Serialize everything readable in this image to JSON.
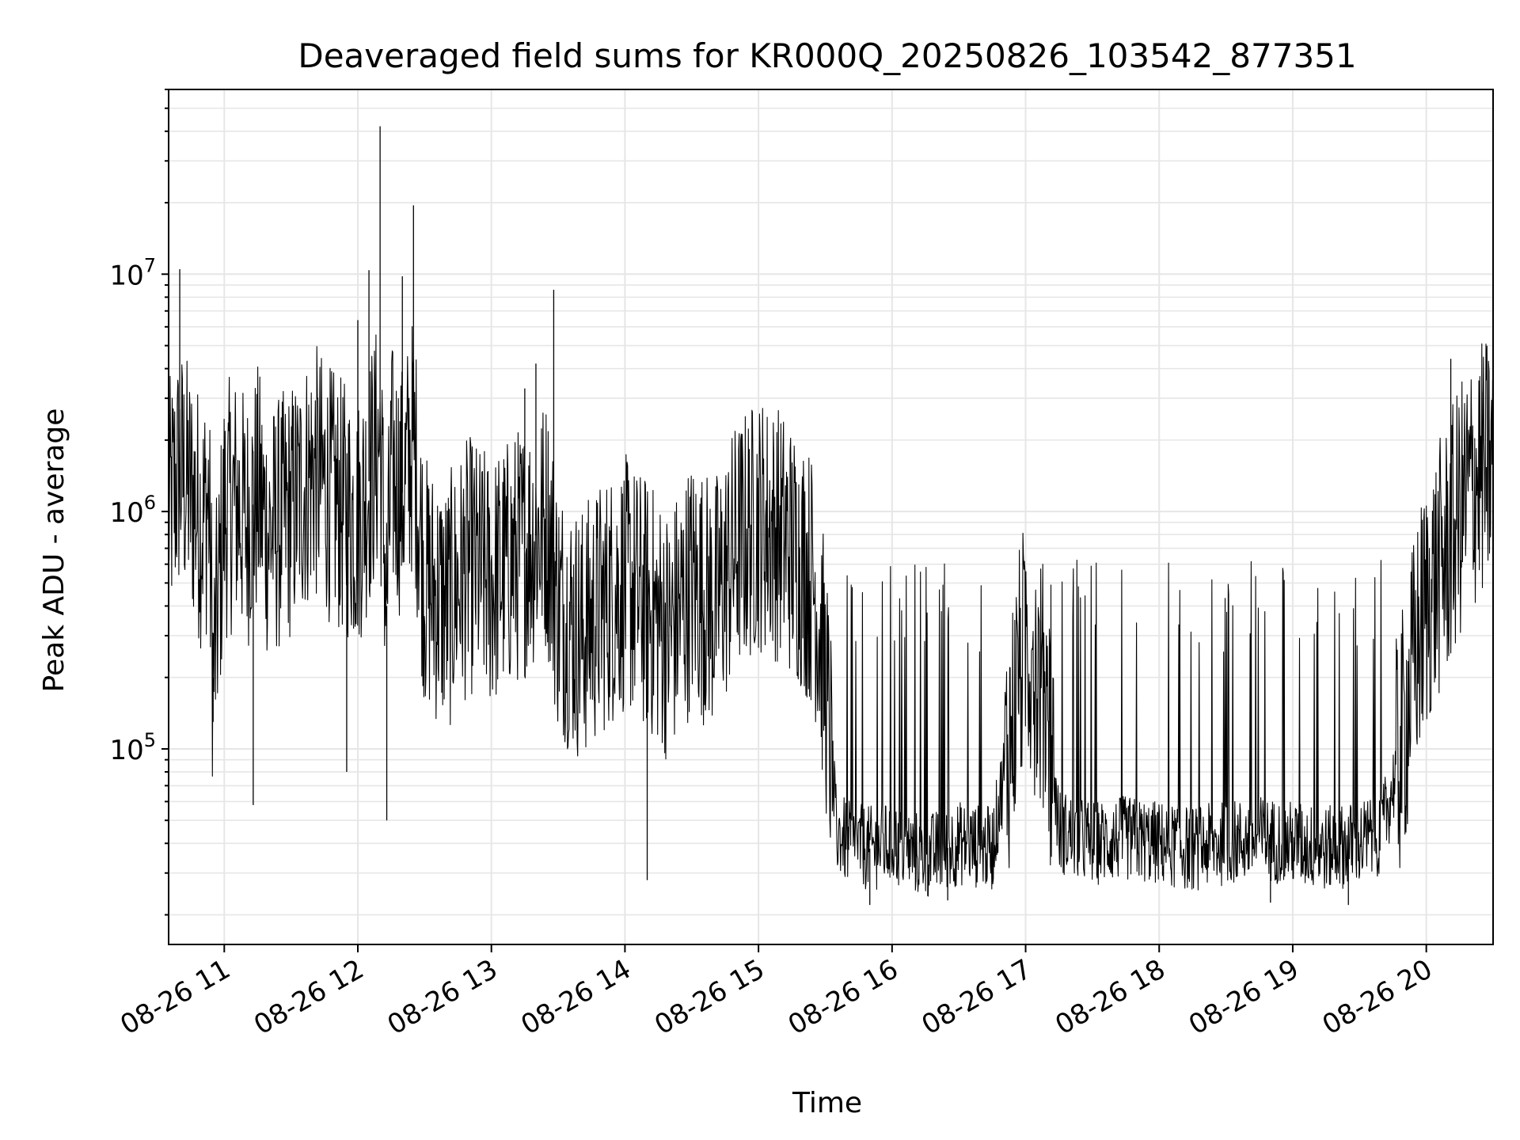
{
  "chart_data": {
    "type": "line",
    "title": "Deaveraged field sums for KR000Q_20250826_103542_877351",
    "xlabel": "Time",
    "ylabel": "Peak ADU - average",
    "yscale": "log",
    "grid": true,
    "legend": "none",
    "line_color": "#000000",
    "grid_color": "#e6e6e6",
    "xlim": [
      "2025-08-26 10:35",
      "2025-08-26 20:30"
    ],
    "ylim": [
      15000,
      60000000
    ],
    "x_ticks": [
      {
        "time": "2025-08-26 11:00",
        "label": "08-26 11"
      },
      {
        "time": "2025-08-26 12:00",
        "label": "08-26 12"
      },
      {
        "time": "2025-08-26 13:00",
        "label": "08-26 13"
      },
      {
        "time": "2025-08-26 14:00",
        "label": "08-26 14"
      },
      {
        "time": "2025-08-26 15:00",
        "label": "08-26 15"
      },
      {
        "time": "2025-08-26 16:00",
        "label": "08-26 16"
      },
      {
        "time": "2025-08-26 17:00",
        "label": "08-26 17"
      },
      {
        "time": "2025-08-26 18:00",
        "label": "08-26 18"
      },
      {
        "time": "2025-08-26 19:00",
        "label": "08-26 19"
      },
      {
        "time": "2025-08-26 20:00",
        "label": "08-26 20"
      }
    ],
    "y_ticks": [
      {
        "value": 100000,
        "base": "10",
        "exp": "5"
      },
      {
        "value": 1000000,
        "base": "10",
        "exp": "6"
      },
      {
        "value": 10000000,
        "base": "10",
        "exp": "7"
      }
    ],
    "series": [
      {
        "x": [
          "2025-08-26 10:35",
          "2025-08-26 10:40",
          "2025-08-26 10:45",
          "2025-08-26 10:50",
          "2025-08-26 10:53",
          "2025-08-26 10:55",
          "2025-08-26 11:00",
          "2025-08-26 11:05",
          "2025-08-26 11:10",
          "2025-08-26 11:15",
          "2025-08-26 11:20",
          "2025-08-26 11:30",
          "2025-08-26 11:40",
          "2025-08-26 11:50",
          "2025-08-26 12:00",
          "2025-08-26 12:10",
          "2025-08-26 12:13",
          "2025-08-26 12:15",
          "2025-08-26 12:20",
          "2025-08-26 12:25",
          "2025-08-26 12:30",
          "2025-08-26 12:40",
          "2025-08-26 12:50",
          "2025-08-26 13:00",
          "2025-08-26 13:15",
          "2025-08-26 13:25",
          "2025-08-26 13:30",
          "2025-08-26 13:40",
          "2025-08-26 13:50",
          "2025-08-26 14:00",
          "2025-08-26 14:10",
          "2025-08-26 14:20",
          "2025-08-26 14:30",
          "2025-08-26 14:40",
          "2025-08-26 14:50",
          "2025-08-26 15:00",
          "2025-08-26 15:10",
          "2025-08-26 15:20",
          "2025-08-26 15:25",
          "2025-08-26 15:30",
          "2025-08-26 15:35",
          "2025-08-26 15:40",
          "2025-08-26 15:50",
          "2025-08-26 16:00",
          "2025-08-26 16:15",
          "2025-08-26 16:30",
          "2025-08-26 16:45",
          "2025-08-26 17:00",
          "2025-08-26 17:10",
          "2025-08-26 17:15",
          "2025-08-26 17:30",
          "2025-08-26 17:45",
          "2025-08-26 18:00",
          "2025-08-26 18:15",
          "2025-08-26 18:30",
          "2025-08-26 18:45",
          "2025-08-26 19:00",
          "2025-08-26 19:15",
          "2025-08-26 19:30",
          "2025-08-26 19:40",
          "2025-08-26 19:45",
          "2025-08-26 19:50",
          "2025-08-26 19:55",
          "2025-08-26 20:00",
          "2025-08-26 20:05",
          "2025-08-26 20:10",
          "2025-08-26 20:15",
          "2025-08-26 20:20",
          "2025-08-26 20:25",
          "2025-08-26 20:30"
        ],
        "y": [
          1000000,
          1500000,
          1200000,
          900000,
          1100000,
          200000,
          1000000,
          1100000,
          900000,
          1200000,
          800000,
          1000000,
          1500000,
          1100000,
          900000,
          2000000,
          400000,
          1500000,
          1200000,
          2000000,
          500000,
          400000,
          600000,
          500000,
          700000,
          900000,
          400000,
          300000,
          400000,
          500000,
          400000,
          300000,
          500000,
          400000,
          700000,
          900000,
          800000,
          600000,
          500000,
          200000,
          45000,
          40000,
          38000,
          40000,
          35000,
          40000,
          38000,
          300000,
          150000,
          45000,
          40000,
          42000,
          40000,
          38000,
          40000,
          42000,
          40000,
          38000,
          40000,
          45000,
          70000,
          120000,
          250000,
          400000,
          550000,
          700000,
          1000000,
          1300000,
          1500000,
          1600000
        ]
      }
    ],
    "spikes": [
      {
        "x": "2025-08-26 10:40",
        "y": 10500000
      },
      {
        "x": "2025-08-26 10:55",
        "y": 130000
      },
      {
        "x": "2025-08-26 11:13",
        "y": 58000
      },
      {
        "x": "2025-08-26 11:55",
        "y": 80000
      },
      {
        "x": "2025-08-26 12:00",
        "y": 6400000
      },
      {
        "x": "2025-08-26 12:05",
        "y": 10400000
      },
      {
        "x": "2025-08-26 12:10",
        "y": 42000000
      },
      {
        "x": "2025-08-26 12:13",
        "y": 50000
      },
      {
        "x": "2025-08-26 12:20",
        "y": 9800000
      },
      {
        "x": "2025-08-26 12:25",
        "y": 19500000
      },
      {
        "x": "2025-08-26 13:15",
        "y": 3300000
      },
      {
        "x": "2025-08-26 13:20",
        "y": 4200000
      },
      {
        "x": "2025-08-26 13:28",
        "y": 8600000
      },
      {
        "x": "2025-08-26 14:10",
        "y": 28000
      },
      {
        "x": "2025-08-26 15:50",
        "y": 22000
      },
      {
        "x": "2025-08-26 16:25",
        "y": 23000
      },
      {
        "x": "2025-08-26 18:50",
        "y": 22500
      },
      {
        "x": "2025-08-26 19:25",
        "y": 22000
      },
      {
        "x": "2025-08-26 20:11",
        "y": 4400000
      },
      {
        "x": "2025-08-26 20:25",
        "y": 3200000
      },
      {
        "x": "2025-08-26 20:27",
        "y": 1000000
      }
    ]
  }
}
